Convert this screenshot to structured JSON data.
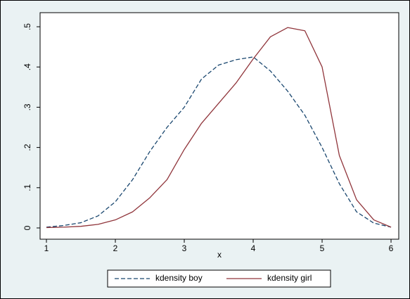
{
  "chart_data": {
    "type": "line",
    "x_label": "x",
    "x": [
      1,
      1.25,
      1.5,
      1.75,
      2,
      2.25,
      2.5,
      2.75,
      3,
      3.25,
      3.5,
      3.75,
      4,
      4.25,
      4.5,
      4.75,
      5,
      5.25,
      5.5,
      5.75,
      6
    ],
    "series": [
      {
        "name": "kdensity boy",
        "color": "#1a476f",
        "line_style": "dashed",
        "values": [
          0.002,
          0.006,
          0.013,
          0.03,
          0.065,
          0.12,
          0.19,
          0.25,
          0.3,
          0.37,
          0.405,
          0.418,
          0.425,
          0.39,
          0.34,
          0.28,
          0.2,
          0.11,
          0.04,
          0.012,
          0.002
        ]
      },
      {
        "name": "kdensity girl",
        "color": "#90353b",
        "line_style": "solid",
        "values": [
          0.001,
          0.002,
          0.004,
          0.009,
          0.02,
          0.04,
          0.075,
          0.12,
          0.195,
          0.26,
          0.31,
          0.36,
          0.42,
          0.475,
          0.498,
          0.49,
          0.4,
          0.18,
          0.07,
          0.02,
          0.002
        ]
      }
    ],
    "xlim": [
      0.908,
      6.112
    ],
    "xticks": [
      1,
      2,
      3,
      4,
      5,
      6
    ],
    "ylim": [
      -0.028,
      0.535
    ],
    "yticks": [
      0,
      {
        "value": 0.1,
        "label": ".1"
      },
      {
        "value": 0.2,
        "label": ".2"
      },
      {
        "value": 0.3,
        "label": ".3"
      },
      {
        "value": 0.4,
        "label": ".4"
      },
      {
        "value": 0.5,
        "label": ".5"
      }
    ],
    "grid": false,
    "legend_position": "bottom"
  }
}
